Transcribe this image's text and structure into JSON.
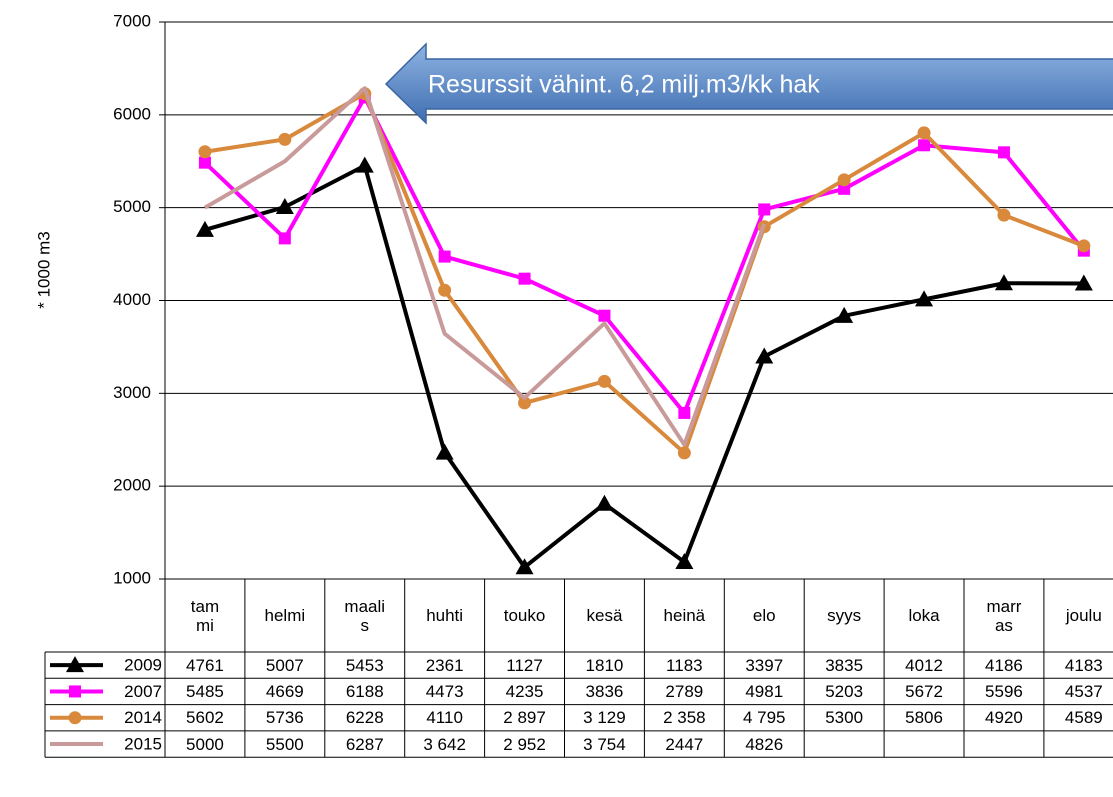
{
  "chart_data": {
    "type": "line",
    "y_axis_label": "* 1000 m3",
    "annotation": "Resurssit vähint. 6,2 milj.m3/kk hak",
    "categories": [
      "tam\nmi",
      "helmi",
      "maali\ns",
      "huhti",
      "touko",
      "kesä",
      "heinä",
      "elo",
      "syys",
      "loka",
      "marr\nas",
      "joulu"
    ],
    "ylim": [
      1000,
      7000
    ],
    "yticks": [
      1000,
      2000,
      3000,
      4000,
      5000,
      6000,
      7000
    ],
    "grid": true,
    "series": [
      {
        "name": "2009",
        "color": "#000000",
        "marker": "triangle",
        "values": [
          4761,
          5007,
          5453,
          2361,
          1127,
          1810,
          1183,
          3397,
          3835,
          4012,
          4186,
          4183
        ]
      },
      {
        "name": "2007",
        "color": "#ff00ff",
        "marker": "square",
        "values": [
          5485,
          4669,
          6188,
          4473,
          4235,
          3836,
          2789,
          4981,
          5203,
          5672,
          5596,
          4537
        ]
      },
      {
        "name": "2014",
        "color": "#d9893b",
        "marker": "circle",
        "values": [
          5602,
          5736,
          6228,
          4110,
          2897,
          3129,
          2358,
          4795,
          5300,
          5806,
          4920,
          4589
        ],
        "value_labels": [
          "5602",
          "5736",
          "6228",
          "4110",
          "2 897",
          "3 129",
          "2 358",
          "4 795",
          "5300",
          "5806",
          "4920",
          "4589"
        ]
      },
      {
        "name": "2015",
        "color": "#c99a9a",
        "marker": "none",
        "values": [
          5000,
          5500,
          6287,
          3642,
          2952,
          3754,
          2447,
          4826,
          null,
          null,
          null,
          null
        ],
        "value_labels": [
          "5000",
          "5500",
          "6287",
          "3 642",
          "2 952",
          "3 754",
          "2447",
          "4826",
          null,
          null,
          null,
          null
        ]
      }
    ]
  }
}
